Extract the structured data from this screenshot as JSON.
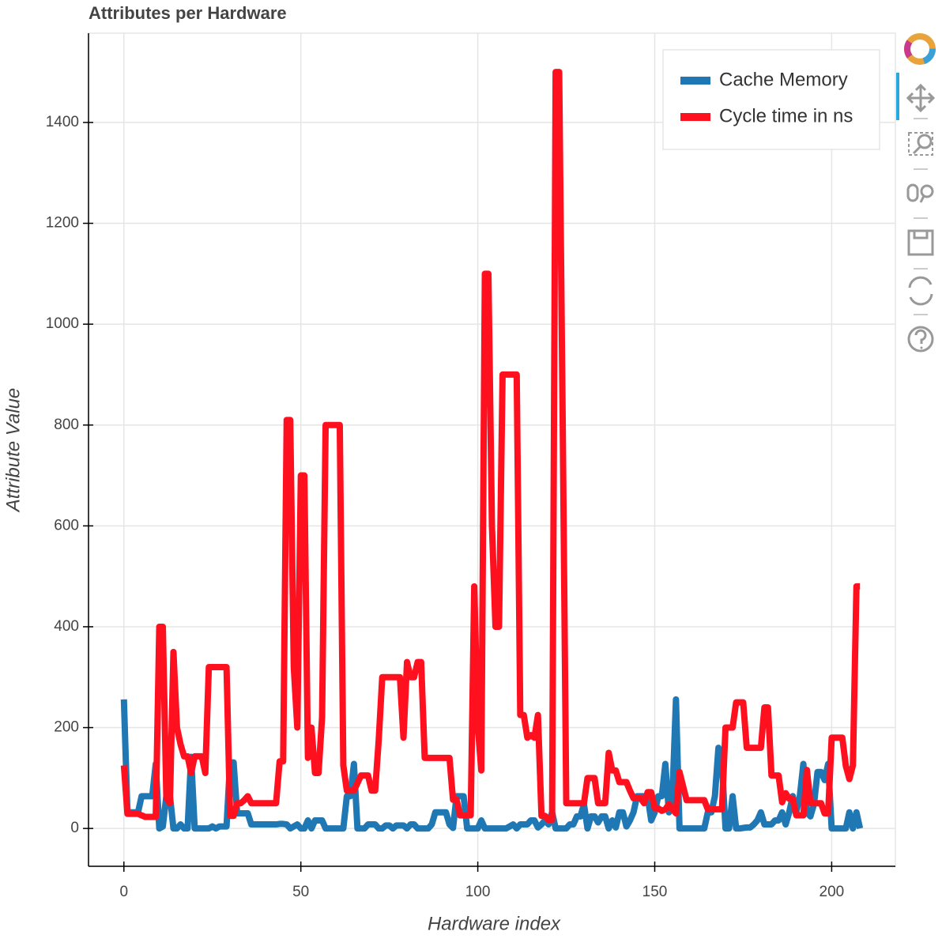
{
  "chart_data": {
    "type": "line",
    "title": "Attributes per Hardware",
    "x_label": "Hardware index",
    "y_label": "Attribute Value",
    "x": [
      0,
      1,
      2,
      3,
      4,
      5,
      6,
      7,
      8,
      9,
      10,
      11,
      12,
      13,
      14,
      15,
      16,
      17,
      18,
      19,
      20,
      21,
      22,
      23,
      24,
      25,
      26,
      27,
      28,
      29,
      30,
      31,
      32,
      33,
      34,
      35,
      36,
      37,
      38,
      39,
      40,
      41,
      42,
      43,
      44,
      45,
      46,
      47,
      48,
      49,
      50,
      51,
      52,
      53,
      54,
      55,
      56,
      57,
      58,
      59,
      60,
      61,
      62,
      63,
      64,
      65,
      66,
      67,
      68,
      69,
      70,
      71,
      72,
      73,
      74,
      75,
      76,
      77,
      78,
      79,
      80,
      81,
      82,
      83,
      84,
      85,
      86,
      87,
      88,
      89,
      90,
      91,
      92,
      93,
      94,
      95,
      96,
      97,
      98,
      99,
      100,
      101,
      102,
      103,
      104,
      105,
      106,
      107,
      108,
      109,
      110,
      111,
      112,
      113,
      114,
      115,
      116,
      117,
      118,
      119,
      120,
      121,
      122,
      123,
      124,
      125,
      126,
      127,
      128,
      129,
      130,
      131,
      132,
      133,
      134,
      135,
      136,
      137,
      138,
      139,
      140,
      141,
      142,
      143,
      144,
      145,
      146,
      147,
      148,
      149,
      150,
      151,
      152,
      153,
      154,
      155,
      156,
      157,
      158,
      159,
      160,
      161,
      162,
      163,
      164,
      165,
      166,
      167,
      168,
      169,
      170,
      171,
      172,
      173,
      174,
      175,
      176,
      177,
      178,
      179,
      180,
      181,
      182,
      183,
      184,
      185,
      186,
      187,
      188,
      189,
      190,
      191,
      192,
      193,
      194,
      195,
      196,
      197,
      198,
      199,
      200,
      201,
      202,
      203,
      204,
      205,
      206,
      207,
      208
    ],
    "series": [
      {
        "name": "Cache Memory",
        "color": "#1f77b4",
        "values": [
          256,
          32,
          32,
          32,
          32,
          64,
          64,
          64,
          64,
          128,
          0,
          4,
          65,
          65,
          0,
          0,
          8,
          0,
          0,
          142,
          0,
          0,
          0,
          0,
          0,
          4,
          0,
          4,
          4,
          4,
          131,
          131,
          30,
          30,
          30,
          30,
          8,
          8,
          8,
          8,
          8,
          8,
          8,
          8,
          9,
          9,
          8,
          0,
          4,
          8,
          0,
          0,
          16,
          0,
          16,
          16,
          16,
          0,
          0,
          0,
          0,
          0,
          0,
          64,
          64,
          128,
          0,
          0,
          0,
          8,
          8,
          8,
          0,
          0,
          6,
          6,
          0,
          6,
          6,
          6,
          0,
          8,
          8,
          0,
          0,
          0,
          0,
          8,
          32,
          32,
          32,
          32,
          8,
          1,
          64,
          64,
          64,
          0,
          0,
          0,
          0,
          16,
          0,
          0,
          0,
          0,
          0,
          0,
          0,
          4,
          8,
          0,
          8,
          8,
          8,
          16,
          16,
          2,
          8,
          16,
          8,
          32,
          0,
          0,
          0,
          0,
          8,
          8,
          24,
          24,
          48,
          0,
          24,
          24,
          12,
          24,
          24,
          0,
          16,
          2,
          32,
          32,
          4,
          16,
          32,
          64,
          64,
          64,
          64,
          16,
          32,
          64,
          64,
          128,
          32,
          64,
          256,
          0,
          0,
          0,
          0,
          0,
          0,
          0,
          0,
          32,
          32,
          64,
          160,
          128,
          0,
          0,
          64,
          0,
          0,
          1,
          2,
          2,
          8,
          16,
          32,
          8,
          8,
          8,
          16,
          16,
          32,
          8,
          32,
          64,
          32,
          64,
          128,
          32,
          24,
          48,
          112,
          112,
          96,
          128,
          0,
          0,
          0,
          0,
          0,
          32,
          0,
          32,
          0
        ]
      },
      {
        "name": "Cycle time in ns",
        "color": "#ff101f",
        "values": [
          125,
          29,
          29,
          29,
          29,
          26,
          23,
          23,
          23,
          23,
          400,
          400,
          60,
          50,
          350,
          200,
          167,
          143,
          143,
          110,
          143,
          143,
          143,
          110,
          320,
          320,
          320,
          320,
          320,
          320,
          25,
          25,
          50,
          50,
          56,
          64,
          50,
          50,
          50,
          50,
          50,
          50,
          50,
          50,
          133,
          133,
          810,
          810,
          320,
          200,
          700,
          700,
          140,
          200,
          110,
          110,
          220,
          800,
          800,
          800,
          800,
          800,
          125,
          75,
          75,
          75,
          90,
          105,
          105,
          105,
          75,
          75,
          175,
          300,
          300,
          300,
          300,
          300,
          300,
          180,
          330,
          300,
          300,
          330,
          330,
          140,
          140,
          140,
          140,
          140,
          140,
          140,
          140,
          57,
          57,
          26,
          26,
          26,
          26,
          480,
          203,
          115,
          1100,
          1100,
          600,
          400,
          400,
          900,
          900,
          900,
          900,
          900,
          225,
          225,
          180,
          185,
          180,
          225,
          25,
          25,
          17,
          17,
          1500,
          1500,
          800,
          50,
          50,
          50,
          50,
          50,
          50,
          100,
          100,
          100,
          50,
          50,
          50,
          150,
          115,
          115,
          92,
          92,
          92,
          75,
          60,
          60,
          60,
          50,
          72,
          72,
          40,
          40,
          35,
          38,
          48,
          38,
          30,
          112,
          84,
          56,
          56,
          56,
          56,
          56,
          56,
          38,
          38,
          38,
          38,
          38,
          200,
          200,
          200,
          250,
          250,
          250,
          160,
          160,
          160,
          160,
          160,
          240,
          240,
          105,
          105,
          105,
          52,
          70,
          59,
          59,
          26,
          26,
          26,
          116,
          50,
          50,
          50,
          50,
          30,
          30,
          180,
          180,
          180,
          180,
          124,
          98,
          125,
          480,
          480
        ]
      }
    ],
    "xlim": [
      -10,
      218
    ],
    "ylim": [
      -75,
      1577
    ],
    "xticks": [
      0,
      50,
      100,
      150,
      200
    ],
    "yticks": [
      0,
      200,
      400,
      600,
      800,
      1000,
      1200,
      1400
    ],
    "grid": true,
    "legend": "top_right"
  }
}
